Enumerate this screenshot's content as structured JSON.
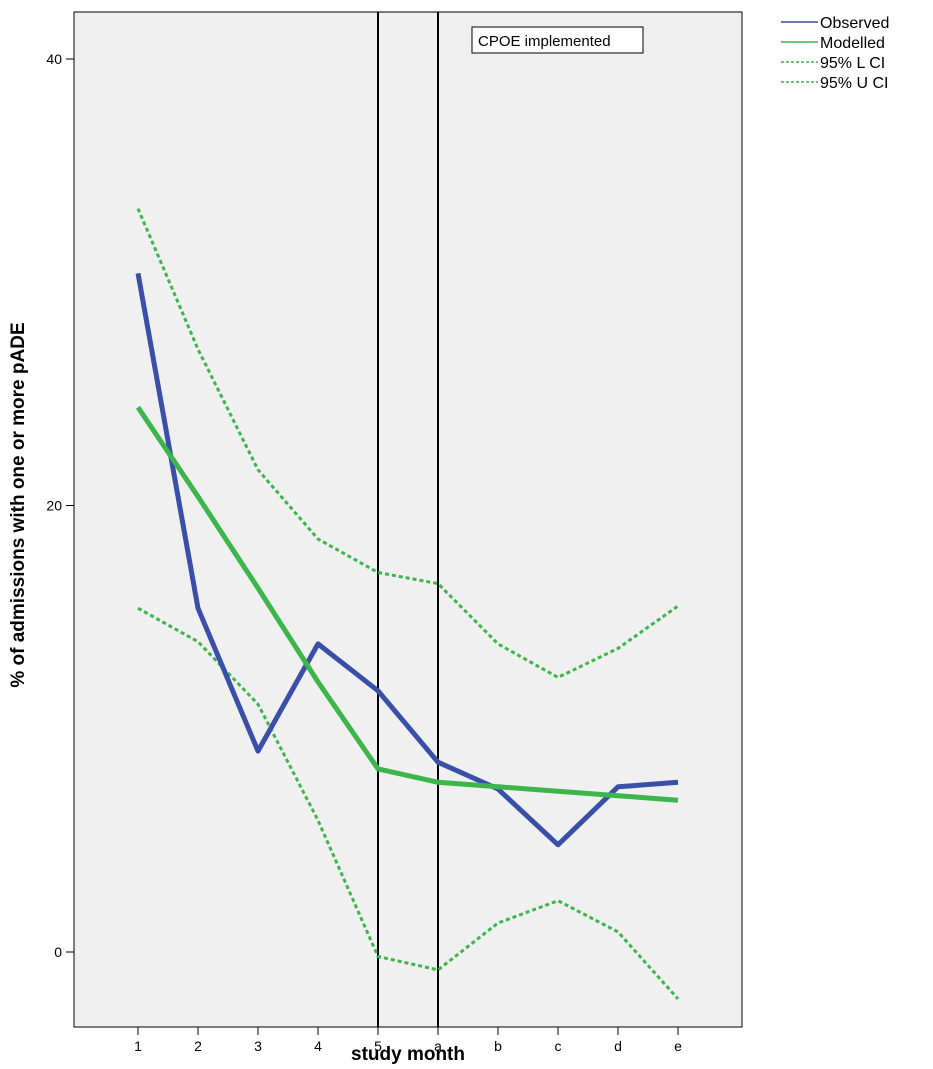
{
  "chart_data": {
    "type": "line",
    "xlabel": "study month",
    "ylabel": "% of admissions with one or more pADE",
    "categories": [
      "1",
      "2",
      "3",
      "4",
      "5",
      "a",
      "b",
      "c",
      "d",
      "e"
    ],
    "ylim": [
      -2,
      42
    ],
    "yticks": [
      0,
      20,
      40
    ],
    "grid": false,
    "legend_position": "top-right",
    "annotation": "CPOE implemented",
    "reference_lines_at": [
      "5",
      "a"
    ],
    "series": [
      {
        "name": "Observed",
        "style": "solid",
        "color": "#3a4fa8",
        "values": [
          30.4,
          15.4,
          9.0,
          13.8,
          11.7,
          8.5,
          7.3,
          4.8,
          7.4,
          7.6
        ]
      },
      {
        "name": "Modelled",
        "style": "solid",
        "color": "#3cb54a",
        "values": [
          24.4,
          20.4,
          16.3,
          12.1,
          8.2,
          7.6,
          7.4,
          7.2,
          7.0,
          6.8
        ]
      },
      {
        "name": "95% L CI",
        "style": "dotted",
        "color": "#3cb54a",
        "values": [
          15.4,
          13.9,
          11.1,
          5.9,
          -0.2,
          -0.8,
          1.3,
          2.3,
          0.9,
          -2.1
        ]
      },
      {
        "name": "95% U CI",
        "style": "dotted",
        "color": "#3cb54a",
        "values": [
          33.3,
          27.0,
          21.6,
          18.5,
          17.0,
          16.5,
          13.8,
          12.3,
          13.6,
          15.5
        ]
      }
    ]
  }
}
